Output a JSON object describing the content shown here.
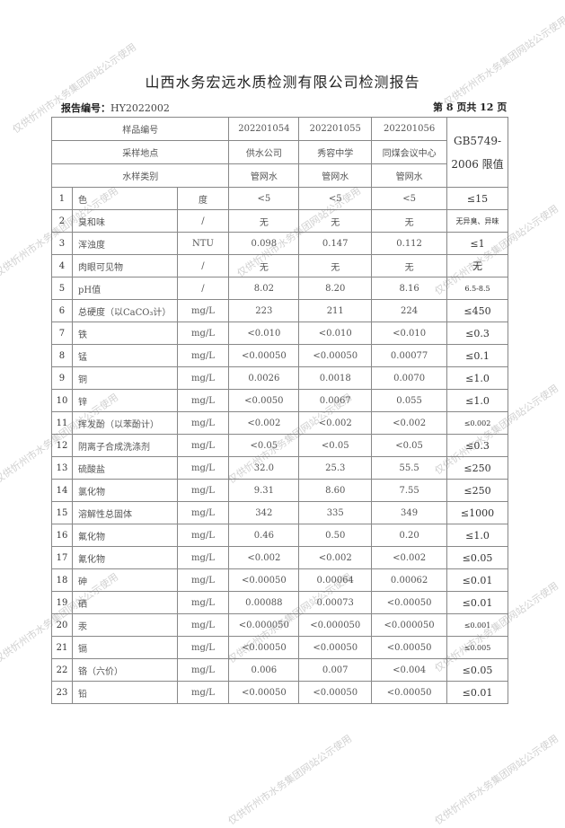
{
  "title": "山西水务宏远水质检测有限公司检测报告",
  "report_no_label": "报告编号：",
  "report_no": "HY2022002",
  "page_info": "第 8 页共 12 页",
  "watermark": "仅供忻州市水务集团网站公示使用",
  "header": {
    "sample_no_label": "样品编号",
    "location_label": "采样地点",
    "type_label": "水样类别",
    "limit_label_1": "GB5749-",
    "limit_label_2": "2006 限值",
    "samples": [
      {
        "no": "202201054",
        "location": "供水公司",
        "type": "管网水"
      },
      {
        "no": "202201055",
        "location": "秀容中学",
        "type": "管网水"
      },
      {
        "no": "202201056",
        "location": "同煤会议中心",
        "type": "管网水"
      }
    ]
  },
  "rows": [
    {
      "idx": "1",
      "name": "色",
      "unit": "度",
      "v": [
        "<5",
        "<5",
        "<5"
      ],
      "limit": "≤15"
    },
    {
      "idx": "2",
      "name": "臭和味",
      "unit": "/",
      "v": [
        "无",
        "无",
        "无"
      ],
      "limit": "无异臭、异味"
    },
    {
      "idx": "3",
      "name": "浑浊度",
      "unit": "NTU",
      "v": [
        "0.098",
        "0.147",
        "0.112"
      ],
      "limit": "≤1"
    },
    {
      "idx": "4",
      "name": "肉眼可见物",
      "unit": "/",
      "v": [
        "无",
        "无",
        "无"
      ],
      "limit": "无"
    },
    {
      "idx": "5",
      "name": "pH值",
      "unit": "/",
      "v": [
        "8.02",
        "8.20",
        "8.16"
      ],
      "limit": "6.5-8.5"
    },
    {
      "idx": "6",
      "name": "总硬度（以CaCO₃计）",
      "unit": "mg/L",
      "v": [
        "223",
        "211",
        "224"
      ],
      "limit": "≤450"
    },
    {
      "idx": "7",
      "name": "铁",
      "unit": "mg/L",
      "v": [
        "<0.010",
        "<0.010",
        "<0.010"
      ],
      "limit": "≤0.3"
    },
    {
      "idx": "8",
      "name": "锰",
      "unit": "mg/L",
      "v": [
        "<0.00050",
        "<0.00050",
        "0.00077"
      ],
      "limit": "≤0.1"
    },
    {
      "idx": "9",
      "name": "铜",
      "unit": "mg/L",
      "v": [
        "0.0026",
        "0.0018",
        "0.0070"
      ],
      "limit": "≤1.0"
    },
    {
      "idx": "10",
      "name": "锌",
      "unit": "mg/L",
      "v": [
        "<0.0050",
        "0.0067",
        "0.055"
      ],
      "limit": "≤1.0"
    },
    {
      "idx": "11",
      "name": "挥发酚（以苯酚计）",
      "unit": "mg/L",
      "v": [
        "<0.002",
        "<0.002",
        "<0.002"
      ],
      "limit": "≤0.002"
    },
    {
      "idx": "12",
      "name": "阴离子合成洗涤剂",
      "unit": "mg/L",
      "v": [
        "<0.05",
        "<0.05",
        "<0.05"
      ],
      "limit": "≤0.3"
    },
    {
      "idx": "13",
      "name": "硫酸盐",
      "unit": "mg/L",
      "v": [
        "32.0",
        "25.3",
        "55.5"
      ],
      "limit": "≤250"
    },
    {
      "idx": "14",
      "name": "氯化物",
      "unit": "mg/L",
      "v": [
        "9.31",
        "8.60",
        "7.55"
      ],
      "limit": "≤250"
    },
    {
      "idx": "15",
      "name": "溶解性总固体",
      "unit": "mg/L",
      "v": [
        "342",
        "335",
        "349"
      ],
      "limit": "≤1000"
    },
    {
      "idx": "16",
      "name": "氟化物",
      "unit": "mg/L",
      "v": [
        "0.46",
        "0.50",
        "0.20"
      ],
      "limit": "≤1.0"
    },
    {
      "idx": "17",
      "name": "氰化物",
      "unit": "mg/L",
      "v": [
        "<0.002",
        "<0.002",
        "<0.002"
      ],
      "limit": "≤0.05"
    },
    {
      "idx": "18",
      "name": "砷",
      "unit": "mg/L",
      "v": [
        "<0.00050",
        "0.00064",
        "0.00062"
      ],
      "limit": "≤0.01"
    },
    {
      "idx": "19",
      "name": "硒",
      "unit": "mg/L",
      "v": [
        "0.00088",
        "0.00073",
        "<0.00050"
      ],
      "limit": "≤0.01"
    },
    {
      "idx": "20",
      "name": "汞",
      "unit": "mg/L",
      "v": [
        "<0.000050",
        "<0.000050",
        "<0.000050"
      ],
      "limit": "≤0.001"
    },
    {
      "idx": "21",
      "name": "镉",
      "unit": "mg/L",
      "v": [
        "<0.00050",
        "<0.00050",
        "<0.00050"
      ],
      "limit": "≤0.005"
    },
    {
      "idx": "22",
      "name": "铬（六价）",
      "unit": "mg/L",
      "v": [
        "0.006",
        "0.007",
        "<0.004"
      ],
      "limit": "≤0.05"
    },
    {
      "idx": "23",
      "name": "铅",
      "unit": "mg/L",
      "v": [
        "<0.00050",
        "<0.00050",
        "<0.00050"
      ],
      "limit": "≤0.01"
    }
  ]
}
